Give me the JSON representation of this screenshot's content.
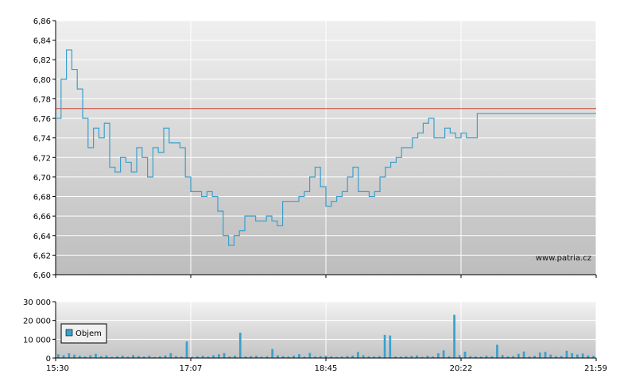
{
  "chart_data": [
    {
      "type": "line",
      "name_text": "",
      "watermark": "www.patria.cz",
      "x_ticks": [
        "15:30",
        "17:07",
        "18:45",
        "20:22",
        "21:59"
      ],
      "y_ticks": [
        "6,60",
        "6,62",
        "6,64",
        "6,66",
        "6,68",
        "6,70",
        "6,72",
        "6,74",
        "6,76",
        "6,78",
        "6,80",
        "6,82",
        "6,84",
        "6,86"
      ],
      "ylim": [
        6.6,
        6.86
      ],
      "reference_line": 6.77,
      "reference_color": "#cc4433",
      "line_color": "#3aa0cc",
      "series": [
        {
          "x": [
            0.0,
            0.01,
            0.02,
            0.03,
            0.04,
            0.05,
            0.06,
            0.07,
            0.08,
            0.09,
            0.1,
            0.11,
            0.12,
            0.13,
            0.14,
            0.15,
            0.16,
            0.17,
            0.18,
            0.19,
            0.2,
            0.21,
            0.22,
            0.23,
            0.24,
            0.25,
            0.26,
            0.27,
            0.28,
            0.29,
            0.3,
            0.31,
            0.32,
            0.33,
            0.34,
            0.35,
            0.36,
            0.37,
            0.38,
            0.39,
            0.4,
            0.41,
            0.42,
            0.43,
            0.44,
            0.45,
            0.46,
            0.47,
            0.48,
            0.49,
            0.5,
            0.51,
            0.52,
            0.53,
            0.54,
            0.55,
            0.56,
            0.57,
            0.58,
            0.59,
            0.6,
            0.61,
            0.62,
            0.63,
            0.64,
            0.65,
            0.66,
            0.67,
            0.68,
            0.69,
            0.7,
            0.71,
            0.72,
            0.73,
            0.74,
            0.75,
            0.76,
            0.77,
            0.78,
            0.79,
            0.8,
            0.81,
            0.82,
            0.83,
            0.84,
            0.85,
            0.86,
            0.87,
            0.88,
            0.89,
            0.9,
            0.91,
            0.92,
            0.93,
            0.94,
            0.95,
            0.96,
            0.97,
            0.98,
            0.99,
            1.0
          ],
          "values": [
            6.76,
            6.8,
            6.83,
            6.81,
            6.79,
            6.76,
            6.73,
            6.75,
            6.74,
            6.755,
            6.71,
            6.705,
            6.72,
            6.715,
            6.705,
            6.73,
            6.72,
            6.7,
            6.73,
            6.725,
            6.75,
            6.735,
            6.735,
            6.73,
            6.7,
            6.685,
            6.685,
            6.68,
            6.685,
            6.68,
            6.665,
            6.64,
            6.63,
            6.64,
            6.645,
            6.66,
            6.66,
            6.655,
            6.655,
            6.66,
            6.655,
            6.65,
            6.675,
            6.675,
            6.675,
            6.68,
            6.685,
            6.7,
            6.71,
            6.69,
            6.67,
            6.675,
            6.68,
            6.685,
            6.7,
            6.71,
            6.685,
            6.685,
            6.68,
            6.685,
            6.7,
            6.71,
            6.715,
            6.72,
            6.73,
            6.73,
            6.74,
            6.745,
            6.755,
            6.76,
            6.74,
            6.74,
            6.75,
            6.745,
            6.74,
            6.745,
            6.74,
            6.74,
            6.765,
            6.765,
            6.765,
            6.765,
            6.765,
            6.765,
            6.765,
            6.765,
            6.765,
            6.765,
            6.765,
            6.765,
            6.765,
            6.765,
            6.765,
            6.765,
            6.765,
            6.765,
            6.765,
            6.765,
            6.765,
            6.765,
            6.765
          ]
        }
      ]
    },
    {
      "type": "bar",
      "y_ticks": [
        "0",
        "10 000",
        "20 000",
        "30 000"
      ],
      "ylim": [
        0,
        30000
      ],
      "legend_label": "Objem",
      "legend_placement": "left",
      "bar_color": "#3aa0cc",
      "series": [
        {
          "name": "Objem",
          "values": [
            2000,
            1500,
            2500,
            1800,
            1200,
            800,
            1500,
            2200,
            1000,
            1400,
            600,
            900,
            1300,
            700,
            1600,
            1100,
            800,
            1200,
            500,
            900,
            1400,
            2600,
            1000,
            700,
            8800,
            600,
            900,
            1200,
            800,
            1500,
            2000,
            2600,
            800,
            1300,
            13500,
            800,
            1000,
            1200,
            700,
            900,
            4800,
            1500,
            1000,
            800,
            1300,
            2100,
            700,
            2700,
            800,
            1000,
            1200,
            900,
            600,
            800,
            1100,
            1300,
            3200,
            1500,
            900,
            800,
            1000,
            12300,
            12000,
            800,
            700,
            900,
            1100,
            1400,
            600,
            1200,
            800,
            2500,
            4100,
            900,
            23000,
            1500,
            3400,
            1000,
            800,
            700,
            1200,
            900,
            7100,
            1600,
            900,
            1000,
            2200,
            3500,
            800,
            1200,
            2900,
            3300,
            1800,
            1000,
            1100,
            3900,
            2600,
            1900,
            2400,
            1400,
            1200
          ]
        }
      ]
    }
  ]
}
